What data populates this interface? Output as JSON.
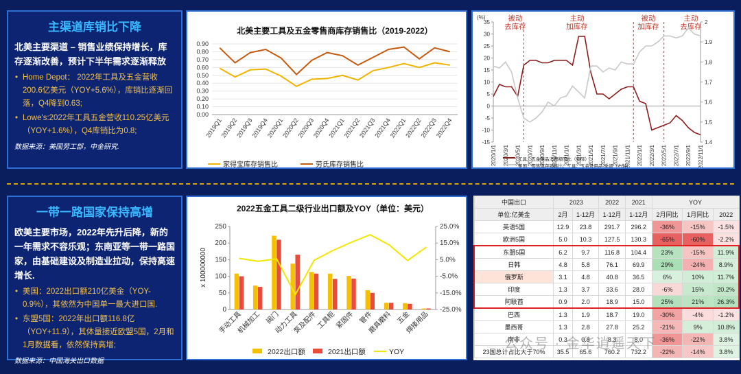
{
  "panels": [
    {
      "title": "主渠道库销比下降",
      "lead": "北美主要渠道 – 销售业绩保持增长，库存逐渐改善，预计下半年需求逐渐释放",
      "bullets": [
        "Home Depot： 2022年工具及五金营收200.6亿美元（YOY+5.6%），库销比逐渐回落，Q4降到0.63;",
        "Lowe's:2022年工具五金营收110.25亿美元（YOY+1.6%），Q4库销比为0.8;"
      ],
      "source": "数据来源：美国劳工部，中金研究."
    },
    {
      "title": "一带一路国家保持高增",
      "lead": "欧美主要市场，2022年先升后降，新的一年需求不容乐观；东南亚等一带一路国家，由基础建设及制造业拉动，保持高速增长.",
      "bullets": [
        "美国：2022出口额210亿美金（YOY-0.9%），其依然为中国单一最大进口国.",
        "东盟5国：2022年出口额116.8亿（YOY+11.9），其体量接近欧盟5国，2月和1月数据看，依然保持高增;"
      ],
      "source": "数据来源：中国海关出口数据"
    }
  ],
  "chart_data": [
    {
      "type": "line",
      "title": "北美主要工具及五金零售商库存销售比（2019-2022）",
      "categories": [
        "2019Q1",
        "2019Q2",
        "2019Q3",
        "2019Q4",
        "2020Q1",
        "2020Q2",
        "2020Q3",
        "2020Q4",
        "2021Q1",
        "2021Q2",
        "2021Q3",
        "2021Q4",
        "2022Q1",
        "2022Q2",
        "2022Q3",
        "2022Q4"
      ],
      "series": [
        {
          "name": "家得宝库存销售比",
          "color": "#f0b400",
          "values": [
            0.59,
            0.48,
            0.57,
            0.58,
            0.49,
            0.36,
            0.45,
            0.46,
            0.5,
            0.44,
            0.56,
            0.6,
            0.65,
            0.6,
            0.66,
            0.63
          ]
        },
        {
          "name": "劳氏库存销售比",
          "color": "#c55a11",
          "values": [
            0.85,
            0.66,
            0.79,
            0.83,
            0.72,
            0.51,
            0.69,
            0.79,
            0.75,
            0.63,
            0.73,
            0.83,
            0.86,
            0.71,
            0.85,
            0.8
          ]
        }
      ],
      "ylim": [
        0,
        0.9
      ],
      "yticks": [
        {
          "value": 0,
          "label": "0.00"
        },
        {
          "value": 0.1,
          "label": "0.10"
        },
        {
          "value": 0.2,
          "label": "0.20"
        },
        {
          "value": 0.3,
          "label": "0.30"
        },
        {
          "value": 0.4,
          "label": "0.40"
        },
        {
          "value": 0.5,
          "label": "0.50"
        },
        {
          "value": 0.6,
          "label": "0.60"
        },
        {
          "value": 0.7,
          "label": "0.70"
        },
        {
          "value": 0.8,
          "label": "0.80"
        },
        {
          "value": 0.9,
          "label": "0.90"
        }
      ],
      "grid": true,
      "legend": "bottom"
    },
    {
      "type": "line",
      "ylabel": "(%)",
      "categories": [
        "2020/1/1",
        null,
        "2020/3/1",
        null,
        "2020/5/1",
        null,
        "2020/7/1",
        null,
        "2020/9/1",
        null,
        "2020/11/1",
        null,
        "2021/1/1",
        null,
        "2021/3/1",
        null,
        "2021/5/1",
        null,
        "2021/7/1",
        null,
        "2021/9/1",
        null,
        "2021/11/1",
        null,
        "2022/1/1",
        null,
        "2022/3/1",
        null,
        "2022/5/1",
        null,
        "2022/7/1",
        null,
        "2022/9/1",
        null,
        "2022/11/1"
      ],
      "series": [
        {
          "name": "工具、五金用品消费额同比（实际）",
          "color": "#8b1c1c",
          "values": [
            4,
            9,
            8,
            8,
            4,
            17,
            19,
            19,
            18,
            18,
            19,
            19,
            19,
            17,
            29,
            29,
            14,
            5,
            5,
            3,
            5,
            7,
            8,
            8,
            2,
            1,
            -10,
            -9,
            -8,
            -7,
            -4,
            -6,
            -9,
            -11,
            -12
          ]
        },
        {
          "name": "美国：零售库存销售比：工具、五金及用品-季调（右轴）",
          "color": "#c8c8c8",
          "axis": "y2",
          "values": [
            1.78,
            1.77,
            1.8,
            1.75,
            1.62,
            1.52,
            1.5,
            1.52,
            1.55,
            1.6,
            1.58,
            1.62,
            1.63,
            1.68,
            1.65,
            1.62,
            1.78,
            1.78,
            1.75,
            1.77,
            1.76,
            1.8,
            1.79,
            1.79,
            1.85,
            1.88,
            1.88,
            1.9,
            1.93,
            1.93,
            1.92,
            1.93,
            1.97,
            1.94,
            1.93
          ]
        }
      ],
      "ylim": [
        -15,
        35
      ],
      "yticks": [
        -15,
        -10,
        -5,
        0,
        5,
        10,
        15,
        20,
        25,
        30,
        35
      ],
      "y2lim": [
        1.4,
        2
      ],
      "y2ticks": [
        1.4,
        1.5,
        1.6,
        1.7,
        1.8,
        1.9,
        2
      ],
      "annotations": [
        [
          "被动",
          "去库存"
        ],
        [
          "主动",
          "加库存"
        ],
        [
          "被动",
          "加库存"
        ],
        [
          "主动",
          "去库存"
        ]
      ],
      "grid": false,
      "legend": "bottom-left"
    },
    {
      "type": "bar",
      "title": "2022五金工具二级行业出口额及YOY（单位：美元）",
      "ylabel": "x 100000000",
      "categories": [
        "手动工具",
        "机械加工",
        "阀门",
        "动力工具",
        "泵及配件",
        "工具柜",
        "紧固件",
        "管件",
        "磨具磨料",
        "五金",
        "焊接用品"
      ],
      "series": [
        {
          "name": "2022出口额",
          "color": "#f5c000",
          "values": [
            108,
            72,
            222,
            138,
            113,
            108,
            101,
            58,
            20,
            19,
            3
          ]
        },
        {
          "name": "2021出口额",
          "color": "#e84c3d",
          "values": [
            100,
            68,
            210,
            165,
            108,
            92,
            93,
            50,
            20,
            17,
            3
          ]
        },
        {
          "name": "YOY",
          "color": "#f2e600",
          "type": "line",
          "axis": "y2",
          "values": [
            5.8,
            4.0,
            5.5,
            -16,
            4.6,
            10.5,
            15.5,
            20,
            14,
            4.5,
            12.6
          ]
        }
      ],
      "ylim": [
        0,
        250
      ],
      "yticks": [
        0,
        50,
        100,
        150,
        200,
        250
      ],
      "y2lim": [
        -25,
        25
      ],
      "y2ticks": [
        {
          "value": -25,
          "label": "-25.0%"
        },
        {
          "value": -15,
          "label": "-15.0%"
        },
        {
          "value": -5,
          "label": "-5.0%"
        },
        {
          "value": 5,
          "label": "5.0%"
        },
        {
          "value": 15,
          "label": "15.0%"
        },
        {
          "value": 25,
          "label": "25.0%"
        }
      ],
      "grid": false,
      "legend": "bottom"
    }
  ],
  "table": {
    "header": [
      [
        "中国出口",
        "2023",
        "2022",
        "2021",
        "YOY"
      ],
      [
        "单位:亿美金",
        "2月",
        "1-12月",
        "1-12月",
        "1-12月",
        "2月同比",
        "1月同比",
        "2022"
      ]
    ],
    "rows": [
      [
        "英语5国",
        "12.9",
        "23.8",
        "291.7",
        "296.2",
        "-36%",
        "-15%",
        "-1.5%"
      ],
      [
        "欧洲5国",
        "5.0",
        "10.3",
        "127.5",
        "130.3",
        "-65%",
        "-60%",
        "-2.2%"
      ],
      [
        "东盟5国",
        "6.2",
        "9.7",
        "116.8",
        "104.4",
        "23%",
        "-15%",
        "11.9%"
      ],
      [
        "日韩",
        "4.8",
        "5.8",
        "76.1",
        "69.9",
        "29%",
        "-24%",
        "8.9%"
      ],
      [
        "俄罗斯",
        "3.1",
        "4.8",
        "40.8",
        "36.5",
        "6%",
        "10%",
        "11.7%"
      ],
      [
        "印度",
        "1.3",
        "3.7",
        "33.6",
        "28.0",
        "-6%",
        "15%",
        "20.2%"
      ],
      [
        "阿联酋",
        "0.9",
        "2.0",
        "18.9",
        "15.0",
        "25%",
        "21%",
        "26.3%"
      ],
      [
        "巴西",
        "1.3",
        "1.9",
        "18.7",
        "19.0",
        "-30%",
        "-4%",
        "-1.2%"
      ],
      [
        "墨西哥",
        "1.3",
        "2.8",
        "27.8",
        "25.2",
        "-21%",
        "9%",
        "10.8%"
      ],
      [
        "南非",
        "0.3",
        "0.8",
        "8.3",
        "8.0",
        "-36%",
        "-22%",
        "3.8%"
      ],
      [
        "23国总计占比大于70%",
        "35.5",
        "65.6",
        "760.2",
        "732.2",
        "-22%",
        "-14%",
        "3.8%"
      ]
    ]
  },
  "watermark": "公众号 · 金华逍遥天下"
}
